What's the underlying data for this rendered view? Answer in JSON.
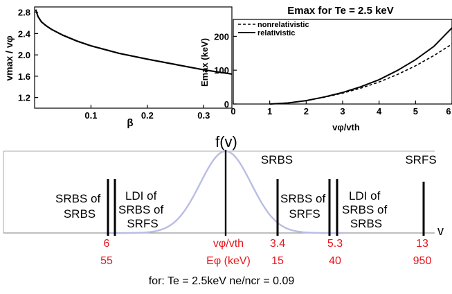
{
  "charts": [
    {
      "type": "line",
      "title": "",
      "xlabel": "β",
      "ylabel": "vmax / vφ",
      "xlim": [
        0.0,
        0.35
      ],
      "ylim": [
        1.0,
        2.9
      ],
      "x_ticks": [
        0.1,
        0.2,
        0.3
      ],
      "y_ticks": [
        1.2,
        1.6,
        2.0,
        2.4,
        2.8
      ],
      "series": [
        {
          "x": [
            0.002,
            0.006,
            0.012,
            0.02,
            0.03,
            0.05,
            0.075,
            0.1,
            0.15,
            0.2,
            0.25,
            0.3,
            0.35
          ],
          "y": [
            2.85,
            2.72,
            2.62,
            2.55,
            2.48,
            2.37,
            2.26,
            2.17,
            2.03,
            1.92,
            1.82,
            1.72,
            1.64
          ]
        }
      ]
    },
    {
      "type": "line",
      "title": "Emax for Te = 2.5 keV",
      "xlabel": "vφ/vth",
      "ylabel": "Emax (keV)",
      "xlim": [
        0,
        6
      ],
      "ylim": [
        0,
        250
      ],
      "x_ticks": [
        0,
        1,
        2,
        3,
        4,
        5,
        6
      ],
      "y_ticks": [
        0,
        100,
        200
      ],
      "legend_position": "top-left",
      "series": [
        {
          "name": "nonrelativistic",
          "style": "dashed",
          "x": [
            1,
            1.5,
            2,
            2.5,
            3,
            3.5,
            4,
            4.5,
            5,
            5.5,
            6
          ],
          "y": [
            0,
            3,
            10,
            20,
            32,
            47,
            65,
            87,
            113,
            143,
            177
          ]
        },
        {
          "name": "relativistic",
          "style": "solid",
          "x": [
            1,
            1.5,
            2,
            2.5,
            3,
            3.5,
            4,
            4.5,
            5,
            5.5,
            6
          ],
          "y": [
            0,
            3,
            10,
            21,
            34,
            51,
            72,
            99,
            131,
            170,
            225
          ]
        }
      ]
    }
  ],
  "diagram": {
    "fv_label": "f(v)",
    "v_axis_label": "v",
    "labels": {
      "srbs_of_srbs": [
        "SRBS of",
        "SRBS"
      ],
      "ldi_srbs_srfs": [
        "LDI of",
        "SRBS of",
        "SRFS"
      ],
      "srbs_top": "SRBS",
      "srbs_of_srfs": [
        "SRBS of",
        "SRFS"
      ],
      "ldi_srbs_srbs": [
        "LDI of",
        "SRBS of",
        "SRBS"
      ],
      "srfs_top": "SRFS"
    },
    "row1": {
      "label": "vφ/vth",
      "values": [
        "6",
        "3.4",
        "5.3",
        "13"
      ]
    },
    "row2": {
      "label": "Eφ (keV)",
      "values": [
        "55",
        "15",
        "40",
        "950"
      ]
    },
    "footer": "for: Te = 2.5keV  ne/ncr = 0.09"
  },
  "colors": {
    "accent_red": "#e8141c",
    "maxwellian_curve": "#b9bde2",
    "line": "#000000"
  }
}
